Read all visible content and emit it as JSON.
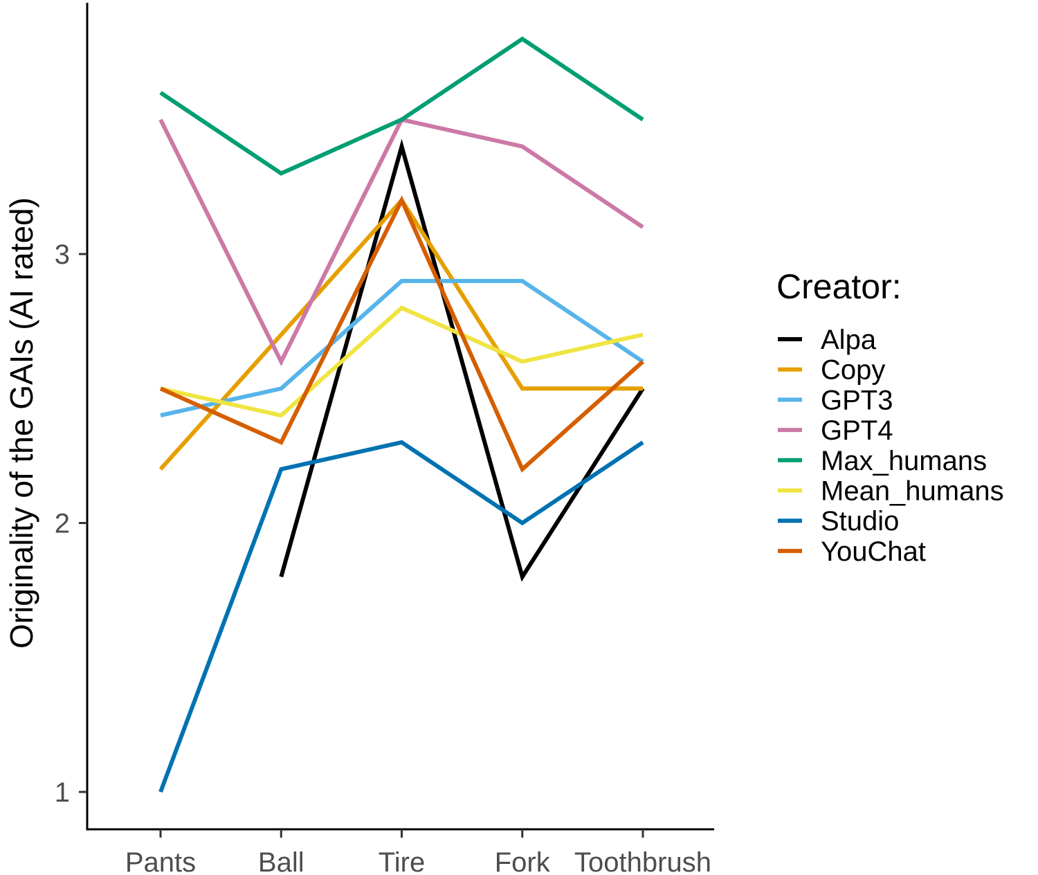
{
  "chart_data": {
    "type": "line",
    "title": "",
    "xlabel": "",
    "ylabel": "Originality of the GAIs (AI rated)",
    "categories": [
      "Pants",
      "Ball",
      "Tire",
      "Fork",
      "Toothbrush"
    ],
    "yticks": [
      1,
      2,
      3
    ],
    "ylim": [
      0.86,
      3.92
    ],
    "grid": false,
    "legend": {
      "title": "Creator:",
      "position": "right"
    },
    "series": [
      {
        "name": "Alpa",
        "color": "#000000",
        "values": [
          null,
          1.8,
          3.4,
          1.8,
          2.5
        ]
      },
      {
        "name": "Copy",
        "color": "#E69F00",
        "values": [
          2.2,
          2.7,
          3.2,
          2.5,
          2.5
        ]
      },
      {
        "name": "GPT3",
        "color": "#56B4E9",
        "values": [
          2.4,
          2.5,
          2.9,
          2.9,
          2.6
        ]
      },
      {
        "name": "GPT4",
        "color": "#CC79A7",
        "values": [
          3.5,
          2.6,
          3.5,
          3.4,
          3.1
        ]
      },
      {
        "name": "Max_humans",
        "color": "#009E73",
        "values": [
          3.6,
          3.3,
          3.5,
          3.8,
          3.5
        ]
      },
      {
        "name": "Mean_humans",
        "color": "#F0E442",
        "values": [
          2.5,
          2.4,
          2.8,
          2.6,
          2.7
        ]
      },
      {
        "name": "Studio",
        "color": "#0072B2",
        "values": [
          1.0,
          2.2,
          2.3,
          2.0,
          2.3
        ]
      },
      {
        "name": "YouChat",
        "color": "#D55E00",
        "values": [
          2.5,
          2.3,
          3.2,
          2.2,
          2.6
        ]
      }
    ]
  }
}
